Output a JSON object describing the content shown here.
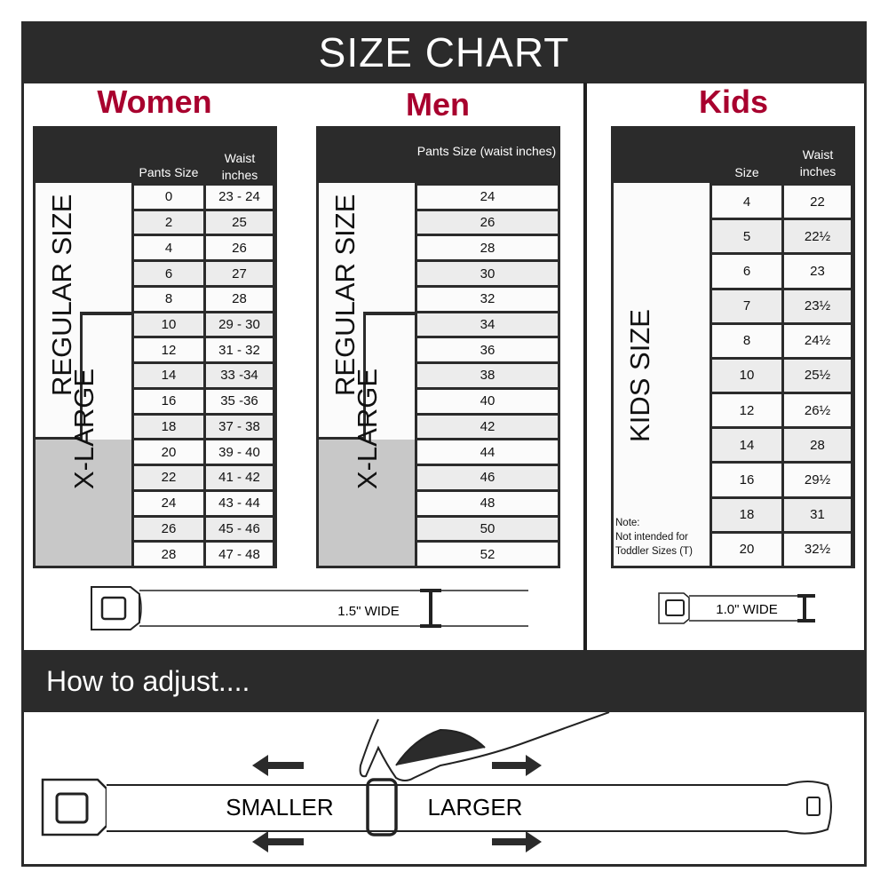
{
  "title": "SIZE CHART",
  "colors": {
    "dark": "#2b2b2b",
    "accent": "#a8002e",
    "xlarge_gray": "#c8c8c8"
  },
  "women": {
    "title": "Women",
    "col1": "Pants Size",
    "col2": "Waist inches",
    "regular_label": "REGULAR SIZE",
    "xlarge_label": "X-LARGE",
    "rows": [
      [
        "0",
        "23 - 24"
      ],
      [
        "2",
        "25"
      ],
      [
        "4",
        "26"
      ],
      [
        "6",
        "27"
      ],
      [
        "8",
        "28"
      ],
      [
        "10",
        "29 - 30"
      ],
      [
        "12",
        "31 - 32"
      ],
      [
        "14",
        "33 -34"
      ],
      [
        "16",
        "35 -36"
      ],
      [
        "18",
        "37 - 38"
      ],
      [
        "20",
        "39 - 40"
      ],
      [
        "22",
        "41 - 42"
      ],
      [
        "24",
        "43 - 44"
      ],
      [
        "26",
        "45 - 46"
      ],
      [
        "28",
        "47 - 48"
      ]
    ],
    "belt_label": "1.5\" WIDE"
  },
  "men": {
    "title": "Men",
    "col1": "Pants Size (waist inches)",
    "regular_label": "REGULAR SIZE",
    "xlarge_label": "X-LARGE",
    "rows": [
      "24",
      "26",
      "28",
      "30",
      "32",
      "34",
      "36",
      "38",
      "40",
      "42",
      "44",
      "46",
      "48",
      "50",
      "52"
    ]
  },
  "kids": {
    "title": "Kids",
    "col1": "Size",
    "col2": "Waist inches",
    "kids_label": "KIDS SIZE",
    "rows": [
      [
        "4",
        "22"
      ],
      [
        "5",
        "22½"
      ],
      [
        "6",
        "23"
      ],
      [
        "7",
        "23½"
      ],
      [
        "8",
        "24½"
      ],
      [
        "10",
        "25½"
      ],
      [
        "12",
        "26½"
      ],
      [
        "14",
        "28"
      ],
      [
        "16",
        "29½"
      ],
      [
        "18",
        "31"
      ],
      [
        "20",
        "32½"
      ]
    ],
    "note_title": "Note:",
    "note_line1": "Not intended for",
    "note_line2": "Toddler Sizes (T)",
    "belt_label": "1.0\" WIDE"
  },
  "adjust": {
    "title": "How to adjust....",
    "smaller": "SMALLER",
    "larger": "LARGER"
  }
}
